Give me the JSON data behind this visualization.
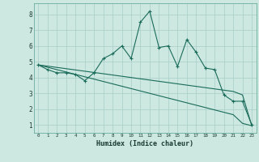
{
  "xlabel": "Humidex (Indice chaleur)",
  "xlim": [
    -0.5,
    23.5
  ],
  "ylim": [
    0.5,
    8.7
  ],
  "xticks": [
    0,
    1,
    2,
    3,
    4,
    5,
    6,
    7,
    8,
    9,
    10,
    11,
    12,
    13,
    14,
    15,
    16,
    17,
    18,
    19,
    20,
    21,
    22,
    23
  ],
  "yticks": [
    1,
    2,
    3,
    4,
    5,
    6,
    7,
    8
  ],
  "bg_color": "#cce8e0",
  "line_color": "#1a6b5a",
  "grid_color": "#a8cfc8",
  "line1_x": [
    0,
    1,
    2,
    3,
    4,
    5,
    6,
    7,
    8,
    9,
    10,
    11,
    12,
    13,
    14,
    15,
    16,
    17,
    18,
    19,
    20,
    21,
    22,
    23
  ],
  "line1_y": [
    4.8,
    4.5,
    4.3,
    4.3,
    4.2,
    3.8,
    4.3,
    5.2,
    5.5,
    6.0,
    5.2,
    7.5,
    8.2,
    5.9,
    6.0,
    4.7,
    6.4,
    5.6,
    4.6,
    4.5,
    2.9,
    2.5,
    2.5,
    1.0
  ],
  "line2_x": [
    0,
    1,
    2,
    3,
    4,
    5,
    6,
    7,
    8,
    9,
    10,
    11,
    12,
    13,
    14,
    15,
    16,
    17,
    18,
    19,
    20,
    21,
    22,
    23
  ],
  "line2_y": [
    4.8,
    4.72,
    4.64,
    4.56,
    4.48,
    4.4,
    4.32,
    4.24,
    4.16,
    4.08,
    4.0,
    3.92,
    3.84,
    3.76,
    3.68,
    3.6,
    3.52,
    3.44,
    3.36,
    3.28,
    3.2,
    3.12,
    2.9,
    0.95
  ],
  "line3_x": [
    0,
    1,
    2,
    3,
    4,
    5,
    6,
    7,
    8,
    9,
    10,
    11,
    12,
    13,
    14,
    15,
    16,
    17,
    18,
    19,
    20,
    21,
    22,
    23
  ],
  "line3_y": [
    4.8,
    4.65,
    4.5,
    4.35,
    4.2,
    4.05,
    3.9,
    3.75,
    3.6,
    3.45,
    3.3,
    3.15,
    3.0,
    2.85,
    2.7,
    2.55,
    2.4,
    2.25,
    2.1,
    1.95,
    1.8,
    1.65,
    1.1,
    0.95
  ]
}
